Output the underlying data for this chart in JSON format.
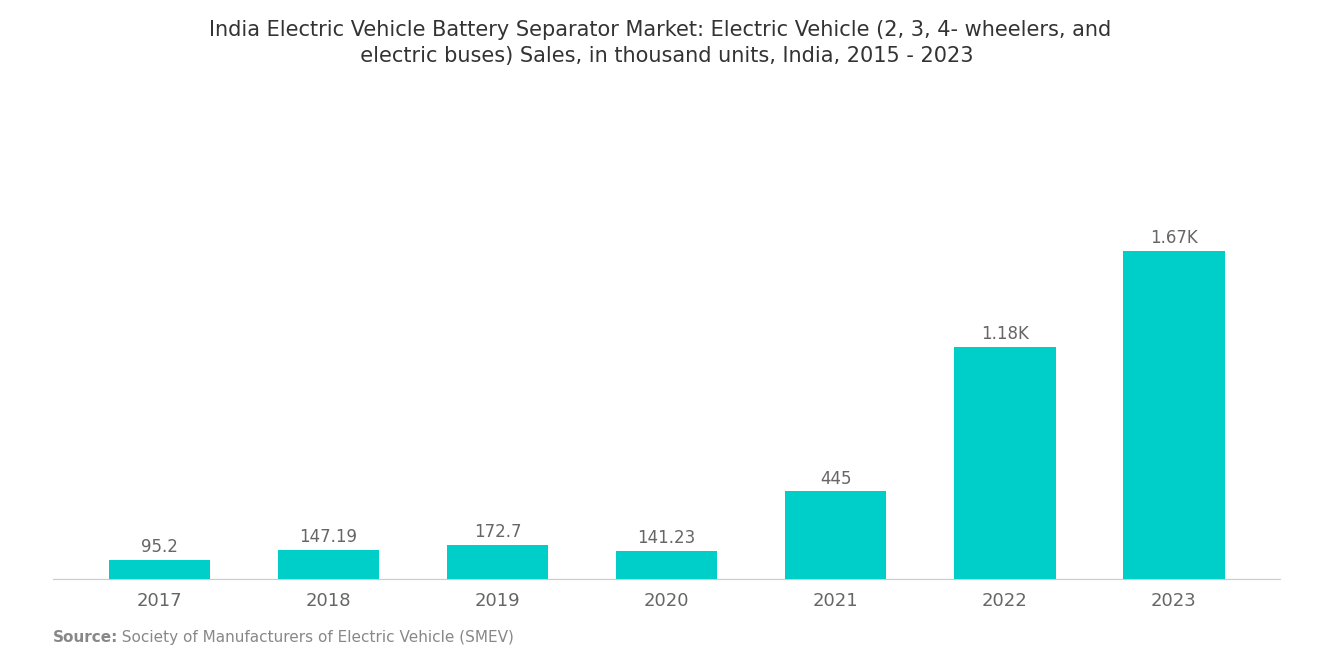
{
  "title_line1": "India Electric Vehicle Battery Separator Market: Electric Vehicle (2, 3, 4- wheelers, and",
  "title_line2": "  electric buses) Sales, in thousand units, India, 2015 - 2023",
  "years": [
    "2017",
    "2018",
    "2019",
    "2020",
    "2021",
    "2022",
    "2023"
  ],
  "values": [
    95.2,
    147.19,
    172.7,
    141.23,
    445,
    1180,
    1670
  ],
  "labels": [
    "95.2",
    "147.19",
    "172.7",
    "141.23",
    "445",
    "1.18K",
    "1.67K"
  ],
  "bar_color": "#00CEC9",
  "background_color": "#ffffff",
  "source_bold": "Source:",
  "source_normal": "  Society of Manufacturers of Electric Vehicle (SMEV)",
  "title_fontsize": 15,
  "label_fontsize": 12,
  "tick_fontsize": 13,
  "source_fontsize": 11,
  "ylim": [
    0,
    2100
  ],
  "bar_width": 0.6
}
